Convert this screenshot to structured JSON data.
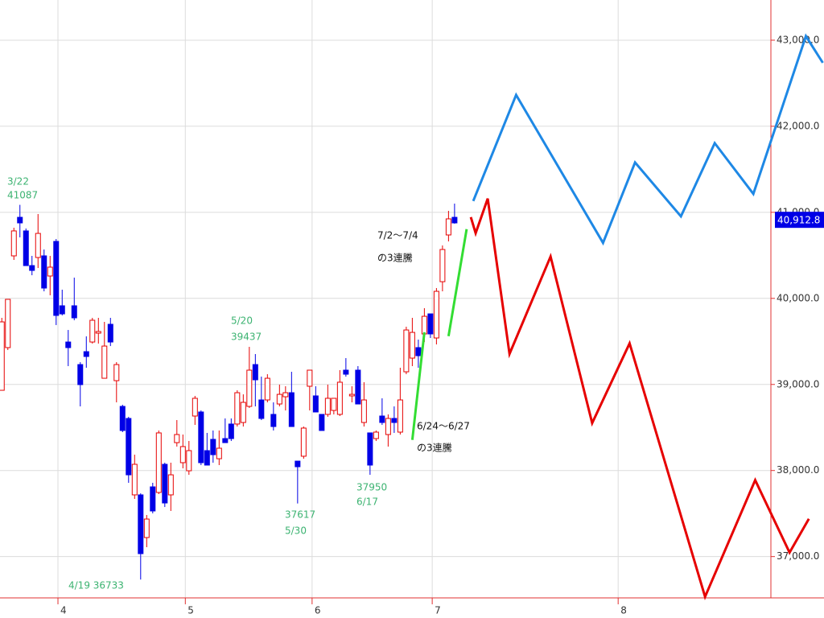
{
  "chart_data": {
    "type": "candlestick",
    "xlim": [
      -0.3,
      136.2
    ],
    "ylim": [
      36520,
      43467
    ],
    "xticks": [
      {
        "value": 9.3,
        "label": "4"
      },
      {
        "value": 30.4,
        "label": "5"
      },
      {
        "value": 51.4,
        "label": "6"
      },
      {
        "value": 71.3,
        "label": "7"
      },
      {
        "value": 102.1,
        "label": "8"
      }
    ],
    "yticks": [
      {
        "value": 37000,
        "label": "37,000.0"
      },
      {
        "value": 38000,
        "label": "38,000.0"
      },
      {
        "value": 39000,
        "label": "39,000.0"
      },
      {
        "value": 40000,
        "label": "40,000.0"
      },
      {
        "value": 41000,
        "label": "41,000.0"
      },
      {
        "value": 42000,
        "label": "42,000.0"
      },
      {
        "value": 43000,
        "label": "43,000.0"
      }
    ],
    "grid": true,
    "up_color": "#e60000",
    "down_color": "#0000e6",
    "candles": {
      "open": [
        38932,
        39428,
        40494,
        40942,
        40784,
        40381,
        40475,
        40494,
        40260,
        40662,
        39914,
        39493,
        39914,
        39231,
        39381,
        39493,
        39596,
        39072,
        39699,
        39044,
        38745,
        38605,
        37717,
        37717,
        37221,
        37810,
        37745,
        38072,
        37717,
        38324,
        38091,
        37997,
        38633,
        38680,
        38231,
        38362,
        38137,
        38371,
        38540,
        38540,
        38558,
        38745,
        39231,
        38820,
        38820,
        38652,
        38773,
        38857,
        38904,
        38109,
        38166,
        38979,
        38867,
        38652,
        38652,
        38698,
        38652,
        39166,
        38867,
        39166,
        38558,
        38437,
        38371,
        38633,
        38418,
        38605,
        38446,
        39147,
        39306,
        39428,
        39587,
        39820,
        39540,
        40194,
        40737,
        40942
      ],
      "high": [
        39774,
        39989,
        40821,
        41087,
        40812,
        40494,
        40980,
        40568,
        40494,
        40690,
        40101,
        39633,
        40241,
        39259,
        39559,
        39774,
        39774,
        39727,
        39774,
        39259,
        38764,
        38624,
        38184,
        37735,
        37483,
        37857,
        38465,
        38091,
        38091,
        38586,
        38418,
        38343,
        38867,
        38698,
        38437,
        38465,
        38465,
        38605,
        38605,
        38932,
        38885,
        39437,
        39353,
        39091,
        39119,
        38792,
        38998,
        38979,
        39147,
        38109,
        38511,
        39166,
        38979,
        38652,
        38998,
        38839,
        39166,
        39306,
        38979,
        39213,
        39026,
        38437,
        38465,
        38839,
        38652,
        38745,
        39194,
        39671,
        39774,
        39521,
        39886,
        39820,
        40120,
        40615,
        41017,
        41101
      ],
      "low": [
        38932,
        39400,
        40447,
        40709,
        40381,
        40269,
        40353,
        40082,
        40036,
        39690,
        39802,
        39213,
        39746,
        38745,
        39194,
        39475,
        39475,
        39072,
        39446,
        38792,
        38446,
        37857,
        37670,
        36733,
        37109,
        37502,
        37726,
        37576,
        37530,
        38278,
        38025,
        37950,
        38530,
        38063,
        38063,
        38091,
        38063,
        38324,
        38343,
        38511,
        38511,
        38727,
        38745,
        38586,
        38792,
        38465,
        38745,
        38698,
        38511,
        37617,
        38137,
        38698,
        38680,
        38465,
        38624,
        38652,
        38633,
        39091,
        38792,
        38773,
        38511,
        37950,
        38343,
        38530,
        38278,
        38437,
        38418,
        39119,
        39213,
        39194,
        39493,
        39540,
        39465,
        40082,
        40662,
        40868
      ],
      "close": [
        39727,
        39989,
        40784,
        40877,
        40381,
        40325,
        40755,
        40120,
        40363,
        39802,
        39820,
        39428,
        39774,
        38998,
        39325,
        39746,
        39615,
        39446,
        39493,
        39231,
        38465,
        37950,
        38072,
        37034,
        37436,
        37530,
        38437,
        37623,
        37950,
        38418,
        38278,
        38231,
        38839,
        38091,
        38063,
        38184,
        38259,
        38324,
        38371,
        38904,
        38792,
        39166,
        39054,
        38605,
        39072,
        38511,
        38885,
        38904,
        38511,
        38044,
        38493,
        39166,
        38680,
        38465,
        38839,
        38839,
        39026,
        39119,
        38885,
        38773,
        38820,
        38063,
        38446,
        38558,
        38605,
        38558,
        38820,
        39633,
        39605,
        39334,
        39792,
        39587,
        40082,
        40568,
        40924,
        40877
      ]
    },
    "lines": [
      {
        "color": "#1e88e5",
        "x": [
          78.1,
          85.2,
          99.6,
          104.9,
          112.5,
          118.1,
          124.5,
          133.2,
          136.0
        ],
        "values": [
          41131,
          42364,
          40645,
          41579,
          40953,
          41804,
          41215,
          43047,
          42738
        ]
      },
      {
        "color": "#e60000",
        "x": [
          77.7,
          78.5,
          80.5,
          84.1,
          90.9,
          97.8,
          104.0,
          116.5,
          124.8,
          130.5,
          133.7
        ],
        "values": [
          40944,
          40757,
          41159,
          39355,
          40486,
          38551,
          39477,
          36533,
          37888,
          37047,
          37439
        ]
      },
      {
        "color": "#33dd33",
        "x": [
          68.0,
          70.0
        ],
        "values": [
          38355,
          39607
        ]
      },
      {
        "color": "#33dd33",
        "x": [
          74.0,
          77.0
        ],
        "values": [
          39561,
          40804
        ]
      }
    ],
    "last_price": {
      "value": 40912.8,
      "label": "40,912.8"
    },
    "annotations": [
      {
        "lines": [
          "3/22",
          "41087"
        ],
        "color": "#3cb371"
      },
      {
        "lines": [
          "5/20",
          "39437"
        ],
        "color": "#3cb371"
      },
      {
        "lines": [
          "37617",
          "5/30"
        ],
        "color": "#3cb371"
      },
      {
        "lines": [
          "37950",
          "6/17"
        ],
        "color": "#3cb371"
      },
      {
        "lines": [
          "4/19 36733"
        ],
        "color": "#3cb371"
      },
      {
        "lines": [
          "7/2〜7/4",
          "の3連騰"
        ],
        "color": "#111111"
      },
      {
        "lines": [
          "6/24〜6/27",
          "の3連騰"
        ],
        "color": "#111111"
      }
    ]
  }
}
